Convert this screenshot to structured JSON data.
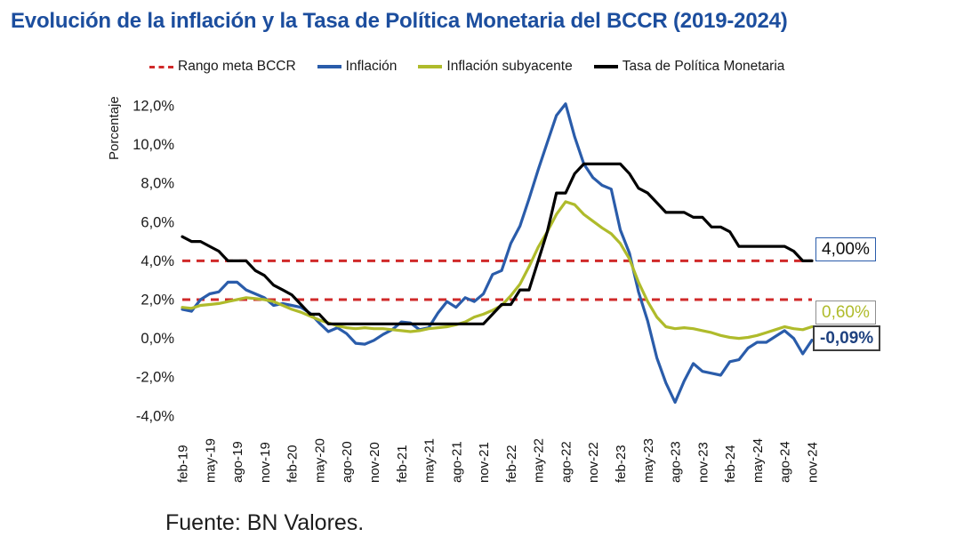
{
  "title": "Evolución de la inflación y la Tasa de Política Monetaria del BCCR (2019-2024)",
  "source": {
    "text": "Fuente: BN Valores."
  },
  "colors": {
    "title_blue": "#1c4e9e",
    "inflacion_blue": "#2a5caa",
    "subyacente_green": "#afbb2b",
    "tpm_black": "#000000",
    "target_red": "#d02a2a"
  },
  "legend": [
    {
      "label": "Rango meta BCCR",
      "color": "#d02a2a",
      "style": "dashed"
    },
    {
      "label": "Inflación",
      "color": "#2a5caa",
      "style": "solid"
    },
    {
      "label": "Inflación subyacente",
      "color": "#afbb2b",
      "style": "solid"
    },
    {
      "label": "Tasa de Política Monetaria",
      "color": "#000000",
      "style": "solid"
    }
  ],
  "annotations": [
    {
      "id": "tpm",
      "text": "4,00%",
      "color": "#0d0d0d",
      "border": "#2a5caa",
      "bold": false
    },
    {
      "id": "subyacente",
      "text": "0,60%",
      "color": "#afbb2b",
      "border": "#8f8f8f",
      "bold": false
    },
    {
      "id": "inflacion",
      "text": "-0,09%",
      "color": "#1f4280",
      "border": "#3d3d3d",
      "bold": true
    }
  ],
  "chart_data": {
    "type": "line",
    "title": "Evolución de la inflación y la Tasa de Política Monetaria del BCCR (2019-2024)",
    "xlabel": "",
    "ylabel": "Porcentaje",
    "ylim": [
      -4,
      12
    ],
    "grid": false,
    "legend_position": "top",
    "x_tick_interval_months": 3,
    "y_ticks": [
      {
        "value": 12,
        "label": "12,0%"
      },
      {
        "value": 10,
        "label": "10,0%"
      },
      {
        "value": 8,
        "label": "8,0%"
      },
      {
        "value": 6,
        "label": "6,0%"
      },
      {
        "value": 4,
        "label": "4,0%"
      },
      {
        "value": 2,
        "label": "2,0%"
      },
      {
        "value": 0,
        "label": "0,0%"
      },
      {
        "value": -2,
        "label": "-2,0%"
      },
      {
        "value": -4,
        "label": "-4,0%"
      }
    ],
    "x": [
      "feb-19",
      "mar-19",
      "abr-19",
      "may-19",
      "jun-19",
      "jul-19",
      "ago-19",
      "sep-19",
      "oct-19",
      "nov-19",
      "dic-19",
      "ene-20",
      "feb-20",
      "mar-20",
      "abr-20",
      "may-20",
      "jun-20",
      "jul-20",
      "ago-20",
      "sep-20",
      "oct-20",
      "nov-20",
      "dic-20",
      "ene-21",
      "feb-21",
      "mar-21",
      "abr-21",
      "may-21",
      "jun-21",
      "jul-21",
      "ago-21",
      "sep-21",
      "oct-21",
      "nov-21",
      "dic-21",
      "ene-22",
      "feb-22",
      "mar-22",
      "abr-22",
      "may-22",
      "jun-22",
      "jul-22",
      "ago-22",
      "sep-22",
      "oct-22",
      "nov-22",
      "dic-22",
      "ene-23",
      "feb-23",
      "mar-23",
      "abr-23",
      "may-23",
      "jun-23",
      "jul-23",
      "ago-23",
      "sep-23",
      "oct-23",
      "nov-23",
      "dic-23",
      "ene-24",
      "feb-24",
      "mar-24",
      "abr-24",
      "may-24",
      "jun-24",
      "jul-24",
      "ago-24",
      "sep-24",
      "oct-24",
      "nov-24"
    ],
    "series": [
      {
        "id": "inflacion",
        "name": "Inflación",
        "color": "#2a5caa",
        "end_label": "-0,09%",
        "values": [
          1.5,
          1.4,
          2.0,
          2.3,
          2.4,
          2.9,
          2.9,
          2.5,
          2.3,
          2.1,
          1.7,
          1.8,
          1.7,
          1.6,
          1.3,
          0.8,
          0.35,
          0.55,
          0.25,
          -0.25,
          -0.3,
          -0.1,
          0.2,
          0.45,
          0.85,
          0.8,
          0.45,
          0.55,
          1.3,
          1.9,
          1.6,
          2.1,
          1.9,
          2.3,
          3.3,
          3.5,
          4.9,
          5.8,
          7.2,
          8.7,
          10.1,
          11.5,
          12.1,
          10.4,
          9.0,
          8.3,
          7.9,
          7.7,
          5.6,
          4.4,
          2.4,
          0.9,
          -1.0,
          -2.3,
          -3.3,
          -2.2,
          -1.3,
          -1.7,
          -1.8,
          -1.9,
          -1.2,
          -1.1,
          -0.5,
          -0.2,
          -0.2,
          0.1,
          0.4,
          0.0,
          -0.8,
          -0.09
        ]
      },
      {
        "id": "subyacente",
        "name": "Inflación subyacente",
        "color": "#afbb2b",
        "end_label": "0,60%",
        "values": [
          1.6,
          1.55,
          1.7,
          1.75,
          1.8,
          1.9,
          2.0,
          2.1,
          2.05,
          2.0,
          1.9,
          1.7,
          1.5,
          1.35,
          1.15,
          0.95,
          0.8,
          0.65,
          0.55,
          0.5,
          0.55,
          0.5,
          0.5,
          0.45,
          0.4,
          0.35,
          0.4,
          0.5,
          0.55,
          0.6,
          0.7,
          0.85,
          1.1,
          1.25,
          1.45,
          1.7,
          2.2,
          2.8,
          3.7,
          4.7,
          5.5,
          6.4,
          7.05,
          6.9,
          6.4,
          6.05,
          5.7,
          5.4,
          4.9,
          4.1,
          2.9,
          1.9,
          1.1,
          0.6,
          0.5,
          0.55,
          0.5,
          0.4,
          0.3,
          0.15,
          0.05,
          0.0,
          0.05,
          0.15,
          0.3,
          0.45,
          0.6,
          0.5,
          0.45,
          0.6
        ]
      },
      {
        "id": "tpm",
        "name": "Tasa de Política Monetaria",
        "color": "#000000",
        "end_label": "4,00%",
        "values": [
          5.25,
          5.0,
          5.0,
          4.75,
          4.5,
          4.0,
          4.0,
          4.0,
          3.5,
          3.25,
          2.75,
          2.5,
          2.25,
          1.75,
          1.25,
          1.25,
          0.75,
          0.75,
          0.75,
          0.75,
          0.75,
          0.75,
          0.75,
          0.75,
          0.75,
          0.75,
          0.75,
          0.75,
          0.75,
          0.75,
          0.75,
          0.75,
          0.75,
          0.75,
          1.25,
          1.75,
          1.75,
          2.5,
          2.5,
          4.0,
          5.5,
          7.5,
          7.5,
          8.5,
          9.0,
          9.0,
          9.0,
          9.0,
          9.0,
          8.5,
          7.75,
          7.5,
          7.0,
          6.5,
          6.5,
          6.5,
          6.25,
          6.25,
          5.75,
          5.75,
          5.5,
          4.75,
          4.75,
          4.75,
          4.75,
          4.75,
          4.75,
          4.5,
          4.0,
          4.0
        ]
      }
    ],
    "reference_lines": [
      {
        "label": "Rango meta BCCR",
        "values": [
          2.0,
          4.0
        ],
        "color": "#d02a2a",
        "style": "dashed"
      }
    ]
  }
}
